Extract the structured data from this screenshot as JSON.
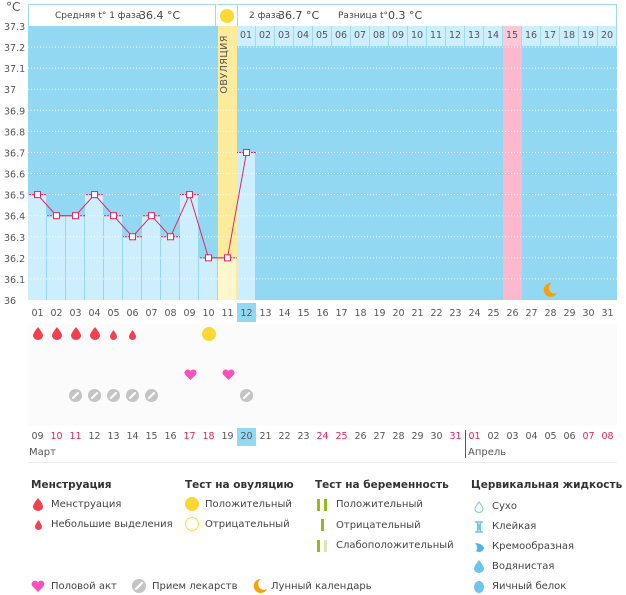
{
  "header": {
    "unit": "°C",
    "phase1_label": "Средняя t° 1 фаза",
    "phase1_value": "36.4 °C",
    "phase2_label": "2 фаза",
    "phase2_value": "36.7 °C",
    "diff_label": "Разница t°",
    "diff_value": "0.3 °C",
    "ovulation_label": "ОВУЛЯЦИЯ"
  },
  "phase2_days": [
    "01",
    "02",
    "03",
    "04",
    "05",
    "06",
    "07",
    "08",
    "09",
    "10",
    "11",
    "12",
    "13",
    "14",
    "15",
    "16",
    "17",
    "18",
    "19",
    "20"
  ],
  "phase2_highlight_day": "15",
  "chart_data": {
    "type": "line",
    "title": "",
    "ylabel": "°C",
    "xlabel": "",
    "ylim": [
      36.0,
      37.3
    ],
    "yticks": [
      "37.3",
      "37.2",
      "37.1",
      "37",
      "36.9",
      "36.8",
      "36.7",
      "36.6",
      "36.5",
      "36.4",
      "36.3",
      "36.2",
      "36.1",
      "36"
    ],
    "cycle_days": [
      "01",
      "02",
      "03",
      "04",
      "05",
      "06",
      "07",
      "08",
      "09",
      "10",
      "11",
      "12",
      "13",
      "14",
      "15",
      "16",
      "17",
      "18",
      "19",
      "20",
      "21",
      "22",
      "23",
      "24",
      "25",
      "26",
      "27",
      "28",
      "29",
      "30",
      "31"
    ],
    "series": [
      {
        "name": "Базальная температура",
        "x": [
          "01",
          "02",
          "03",
          "04",
          "05",
          "06",
          "07",
          "08",
          "09",
          "10",
          "11",
          "12"
        ],
        "values": [
          36.5,
          36.4,
          36.4,
          36.5,
          36.4,
          36.3,
          36.4,
          36.3,
          36.5,
          36.2,
          36.2,
          36.7
        ]
      }
    ],
    "ovulation_day": "11",
    "current_cycle_day": "12",
    "expected_period_day": "26",
    "lunar_day": "28",
    "grid": true
  },
  "calendar": {
    "dates": [
      "09",
      "10",
      "11",
      "12",
      "13",
      "14",
      "15",
      "16",
      "17",
      "18",
      "19",
      "20",
      "21",
      "22",
      "23",
      "24",
      "25",
      "26",
      "27",
      "28",
      "29",
      "30",
      "31",
      "01",
      "02",
      "03",
      "04",
      "05",
      "06",
      "07",
      "08"
    ],
    "weekend_flags": [
      false,
      true,
      true,
      false,
      false,
      false,
      false,
      false,
      true,
      true,
      false,
      false,
      false,
      false,
      false,
      true,
      true,
      false,
      false,
      false,
      false,
      false,
      true,
      true,
      false,
      false,
      false,
      false,
      false,
      true,
      true
    ],
    "today": "20",
    "month1": "Март",
    "month2": "Апрель"
  },
  "events": {
    "menstruation": [
      "heavy",
      "heavy",
      "heavy",
      "heavy",
      "light",
      "light"
    ],
    "ovulation_test_positive_day_index": 9,
    "intercourse_day_indexes": [
      8,
      10
    ],
    "medication_day_indexes": [
      2,
      3,
      4,
      5,
      6,
      11
    ]
  },
  "legend": {
    "menstruation": {
      "title": "Менструация",
      "items": [
        "Менструация",
        "Небольшие выделения"
      ]
    },
    "ovulation_test": {
      "title": "Тест на овуляцию",
      "items": [
        "Положительный",
        "Отрицательный"
      ]
    },
    "pregnancy_test": {
      "title": "Тест на беременность",
      "items": [
        "Положительный",
        "Отрицательный",
        "Слабоположительный"
      ]
    },
    "cervical_fluid": {
      "title": "Цервикальная жидкость",
      "items": [
        "Сухо",
        "Клейкая",
        "Кремообразная",
        "Водянистая",
        "Яичный белок"
      ]
    },
    "other": [
      "Половой акт",
      "Прием лекарств",
      "Лунный календарь"
    ]
  },
  "colors": {
    "sky": "#93d8f3",
    "light_sky": "#cdeefc",
    "ovulation": "#fdeb9c",
    "pink_period": "#fdb8cb",
    "line": "#e8245a",
    "blood": "#f2404f",
    "sun": "#fdd835",
    "heart": "#ff4fb8",
    "pill": "#c4c4c4",
    "moon": "#f5a10a",
    "weekend": "#e8245a",
    "green": "#8cbf1e"
  }
}
